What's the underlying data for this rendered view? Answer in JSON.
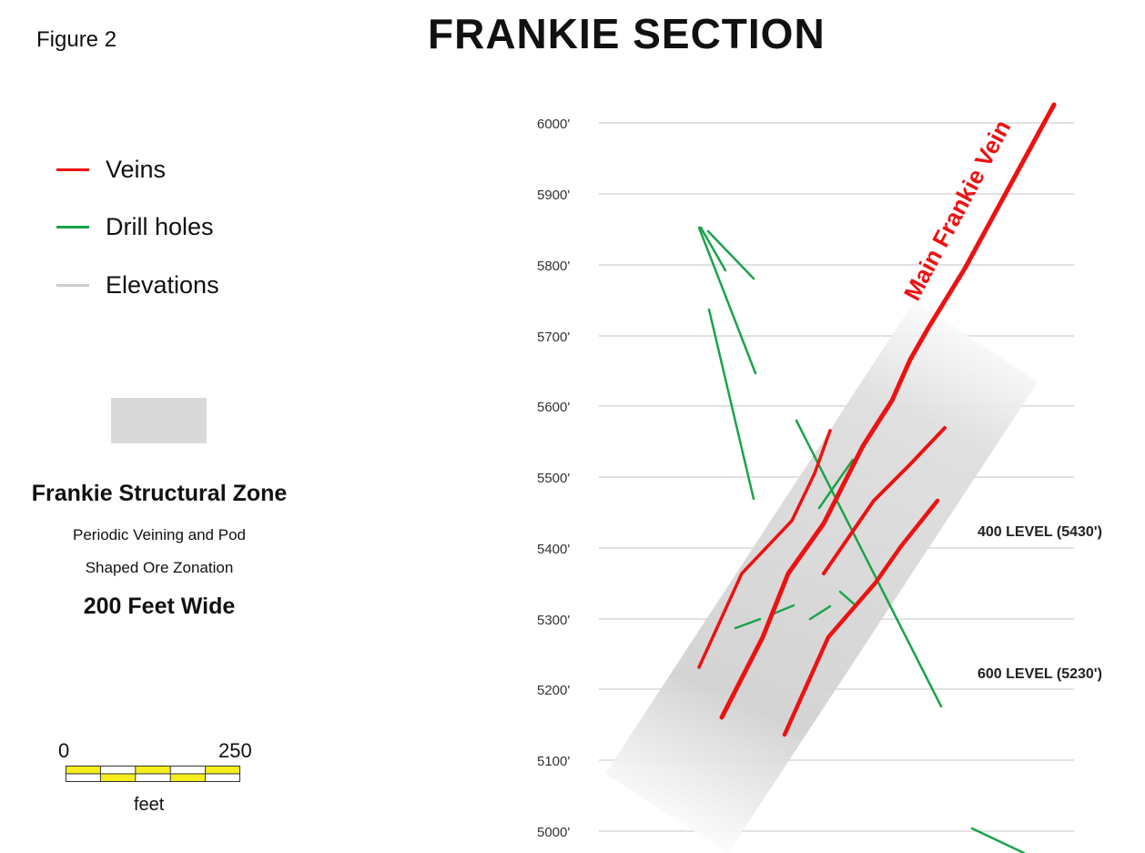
{
  "figure_label": "Figure 2",
  "title": "FRANKIE SECTION",
  "legend": {
    "items": [
      {
        "label": "Veins",
        "color": "#ee1111"
      },
      {
        "label": "Drill holes",
        "color": "#1aa34a"
      },
      {
        "label": "Elevations",
        "color": "#cccccc"
      }
    ]
  },
  "zone": {
    "swatch_color": "#d9d9d9",
    "title": "Frankie Structural Zone",
    "desc_line1": "Periodic Veining and Pod",
    "desc_line2": "Shaped Ore Zonation",
    "width_label": "200 Feet Wide"
  },
  "scale": {
    "min_label": "0",
    "max_label": "250",
    "unit": "feet",
    "fill_color": "#f5ee1a"
  },
  "section": {
    "elevations": [
      "6000'",
      "5900'",
      "5800'",
      "5700'",
      "5600'",
      "5500'",
      "5400'",
      "5300'",
      "5200'",
      "5100'",
      "5000'"
    ],
    "levels": [
      {
        "label": "400 LEVEL (5430')"
      },
      {
        "label": "600 LEVEL (5230')"
      }
    ],
    "vein_label": "Main Frankie Vein"
  }
}
